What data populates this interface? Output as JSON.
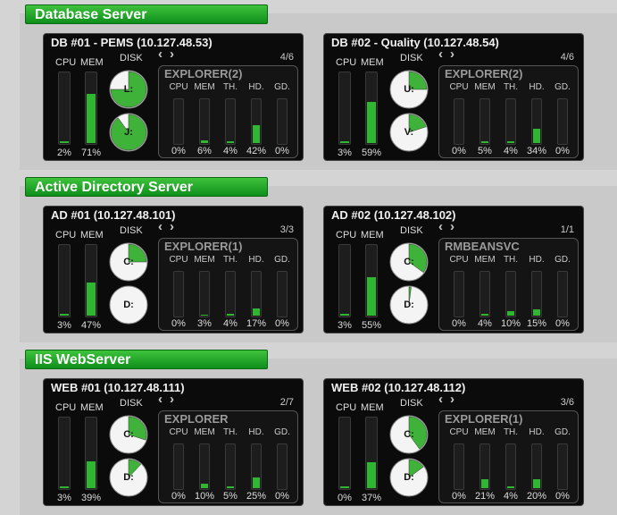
{
  "colors": {
    "accent": "#2fb732",
    "section_header": "#1aa32a",
    "panel": "#0b0b0b"
  },
  "labels": {
    "cpu": "CPU",
    "mem": "MEM",
    "disk": "DISK",
    "proc_cols": [
      "CPU",
      "MEM",
      "TH.",
      "HD.",
      "GD."
    ],
    "nav_prev": "‹",
    "nav_next": "›"
  },
  "sections": [
    {
      "title": "Database Server",
      "servers": [
        {
          "title": "DB #01 - PEMS (10.127.48.53)",
          "cpu": 2,
          "mem": 71,
          "cpu_label": "2%",
          "mem_label": "71%",
          "disks": [
            {
              "label": "L:",
              "used": 0.75
            },
            {
              "label": "J:",
              "used": 0.9
            }
          ],
          "page": "4/6",
          "process": {
            "name": "EXPLORER(2)",
            "values": [
              0,
              6,
              4,
              42,
              0
            ],
            "labels": [
              "0%",
              "6%",
              "4%",
              "42%",
              "0%"
            ]
          }
        },
        {
          "title": "DB #02 - Quality (10.127.48.54)",
          "cpu": 3,
          "mem": 59,
          "cpu_label": "3%",
          "mem_label": "59%",
          "disks": [
            {
              "label": "U:",
              "used": 0.25
            },
            {
              "label": "V:",
              "used": 0.2
            }
          ],
          "page": "4/6",
          "process": {
            "name": "EXPLORER(2)",
            "values": [
              0,
              5,
              4,
              34,
              0
            ],
            "labels": [
              "0%",
              "5%",
              "4%",
              "34%",
              "0%"
            ]
          }
        }
      ]
    },
    {
      "title": "Active Directory Server",
      "servers": [
        {
          "title": "AD #01 (10.127.48.101)",
          "cpu": 3,
          "mem": 47,
          "cpu_label": "3%",
          "mem_label": "47%",
          "disks": [
            {
              "label": "C:",
              "used": 0.25
            },
            {
              "label": "D:",
              "used": 0
            }
          ],
          "page": "3/3",
          "process": {
            "name": "EXPLORER(1)",
            "values": [
              0,
              3,
              4,
              17,
              0
            ],
            "labels": [
              "0%",
              "3%",
              "4%",
              "17%",
              "0%"
            ]
          }
        },
        {
          "title": "AD #02 (10.127.48.102)",
          "cpu": 3,
          "mem": 55,
          "cpu_label": "3%",
          "mem_label": "55%",
          "disks": [
            {
              "label": "C:",
              "used": 0.35
            },
            {
              "label": "D:",
              "used": 0.02
            }
          ],
          "page": "1/1",
          "process": {
            "name": "RMBEANSVC",
            "values": [
              0,
              4,
              10,
              15,
              0
            ],
            "labels": [
              "0%",
              "4%",
              "10%",
              "15%",
              "0%"
            ]
          }
        }
      ]
    },
    {
      "title": "IIS WebServer",
      "servers": [
        {
          "title": "WEB #01 (10.127.48.111)",
          "cpu": 3,
          "mem": 39,
          "cpu_label": "3%",
          "mem_label": "39%",
          "disks": [
            {
              "label": "C:",
              "used": 0.3
            },
            {
              "label": "D:",
              "used": 0.12
            }
          ],
          "page": "2/7",
          "process": {
            "name": "EXPLORER",
            "values": [
              0,
              10,
              5,
              25,
              0
            ],
            "labels": [
              "0%",
              "10%",
              "5%",
              "25%",
              "0%"
            ]
          }
        },
        {
          "title": "WEB #02 (10.127.48.112)",
          "cpu": 0,
          "mem": 37,
          "cpu_label": "0%",
          "mem_label": "37%",
          "disks": [
            {
              "label": "C:",
              "used": 0.4
            },
            {
              "label": "D:",
              "used": 0.15
            }
          ],
          "page": "3/6",
          "process": {
            "name": "EXPLORER(1)",
            "values": [
              0,
              21,
              4,
              20,
              0
            ],
            "labels": [
              "0%",
              "21%",
              "4%",
              "20%",
              "0%"
            ]
          }
        }
      ]
    }
  ]
}
